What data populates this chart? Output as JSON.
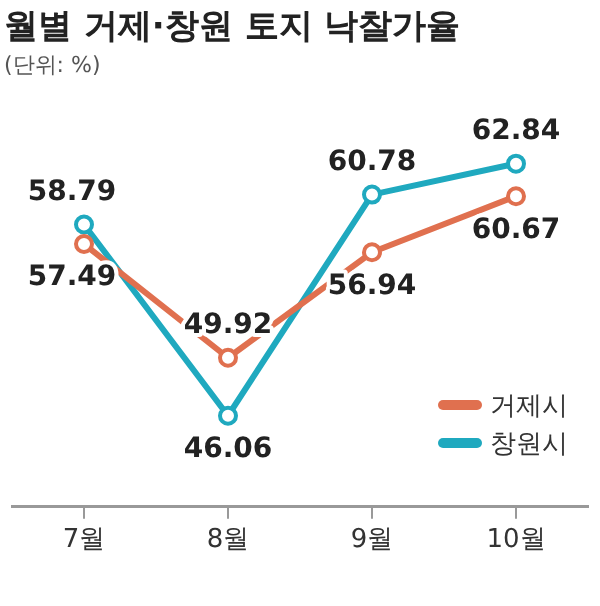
{
  "chart_data": {
    "type": "line",
    "title": "월별 거제·창원 토지 낙찰가율",
    "subtitle": "(단위: %)",
    "categories": [
      "7월",
      "8월",
      "9월",
      "10월"
    ],
    "series": [
      {
        "name": "거제시",
        "color": "#e0704f",
        "values": [
          57.49,
          49.92,
          56.94,
          60.67
        ]
      },
      {
        "name": "창원시",
        "color": "#1fa9bf",
        "values": [
          58.79,
          46.06,
          60.78,
          62.84
        ]
      }
    ],
    "data_labels": true,
    "legend": "bottom right",
    "marker": "circle",
    "line_style": "solid",
    "grid": false
  }
}
